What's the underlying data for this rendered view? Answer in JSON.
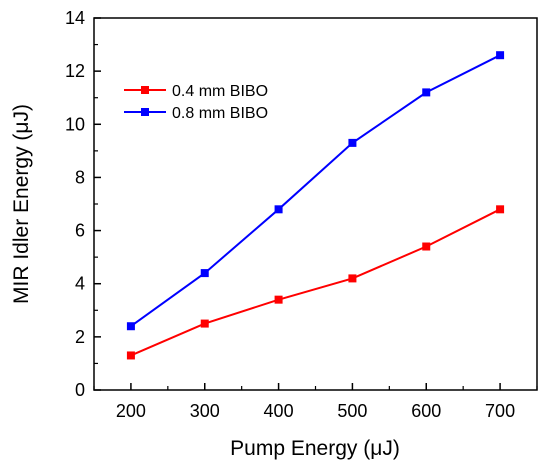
{
  "chart_data": {
    "type": "line",
    "xlabel": "Pump Energy (μJ)",
    "ylabel": "MIR Idler Energy (μJ)",
    "x": [
      200,
      300,
      400,
      500,
      600,
      700
    ],
    "xlim": [
      150,
      750
    ],
    "ylim": [
      0,
      14
    ],
    "xticks": [
      "200",
      "300",
      "400",
      "500",
      "600",
      "700"
    ],
    "yticks": [
      "0",
      "2",
      "4",
      "6",
      "8",
      "10",
      "12",
      "14"
    ],
    "grid": false,
    "legend_position": "top-left",
    "series": [
      {
        "name": "0.4 mm BIBO",
        "color": "#ff0000",
        "marker": "square",
        "values": [
          1.3,
          2.5,
          3.4,
          4.2,
          5.4,
          6.8
        ]
      },
      {
        "name": "0.8 mm BIBO",
        "color": "#0000ff",
        "marker": "square",
        "values": [
          2.4,
          4.4,
          6.8,
          9.3,
          11.2,
          12.6
        ]
      }
    ]
  }
}
